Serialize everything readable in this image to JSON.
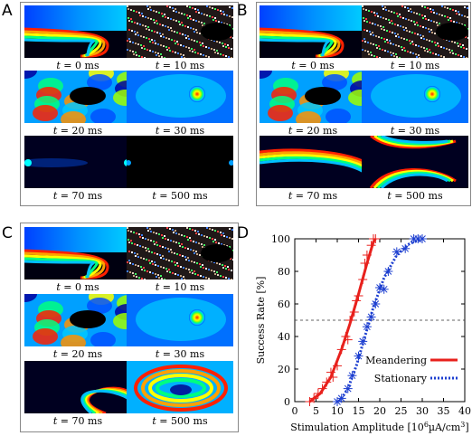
{
  "panels": [
    {
      "letter": "A",
      "captions": [
        "= 0 ms",
        "= 10 ms",
        "= 20 ms",
        "= 30 ms",
        "= 70 ms",
        "= 500 ms"
      ]
    },
    {
      "letter": "B",
      "captions": [
        "= 0 ms",
        "= 10 ms",
        "= 20 ms",
        "= 30 ms",
        "= 70 ms",
        "= 500 ms"
      ]
    },
    {
      "letter": "C",
      "captions": [
        "= 0 ms",
        "= 10 ms",
        "= 20 ms",
        "= 30 ms",
        "= 70 ms",
        "= 500 ms"
      ]
    }
  ],
  "time_var": "t",
  "panel_d_letter": "D",
  "chart_data": {
    "type": "scatter",
    "xlabel": "Stimulation Amplitude [10",
    "xlabel_sup": "6",
    "xlabel_tail": "µA/cm",
    "xlabel_sup2": "3",
    "xlabel_end": "]",
    "ylabel": "Success Rate [%]",
    "xlim": [
      0,
      40
    ],
    "ylim": [
      0,
      100
    ],
    "xticks": [
      0,
      5,
      10,
      15,
      20,
      25,
      30,
      35,
      40
    ],
    "yticks": [
      0,
      20,
      40,
      60,
      80,
      100
    ],
    "reference_line": 50,
    "legend_position": "lower-right",
    "series": [
      {
        "name": "Meandering",
        "color": "#e8201c",
        "marker": "+",
        "points": [
          [
            3.5,
            0
          ],
          [
            4.5,
            2
          ],
          [
            5.5,
            5
          ],
          [
            6.5,
            8
          ],
          [
            7.5,
            12
          ],
          [
            8.5,
            18
          ],
          [
            9,
            15
          ],
          [
            10,
            22
          ],
          [
            11,
            32
          ],
          [
            12,
            40
          ],
          [
            12.5,
            38
          ],
          [
            13,
            50
          ],
          [
            14,
            55
          ],
          [
            14.5,
            62
          ],
          [
            15,
            65
          ],
          [
            16,
            75
          ],
          [
            16.5,
            85
          ],
          [
            17,
            90
          ],
          [
            18,
            96
          ],
          [
            18.5,
            100
          ],
          [
            19,
            100
          ]
        ],
        "fit": [
          [
            3.5,
            0
          ],
          [
            6,
            5
          ],
          [
            8.5,
            15
          ],
          [
            11,
            32
          ],
          [
            13,
            48
          ],
          [
            15,
            66
          ],
          [
            17,
            85
          ],
          [
            18.5,
            98
          ],
          [
            19,
            100
          ]
        ]
      },
      {
        "name": "Stationary",
        "color": "#1d3fd0",
        "marker": "*",
        "points": [
          [
            10,
            0
          ],
          [
            11,
            2
          ],
          [
            12.5,
            8
          ],
          [
            13.5,
            16
          ],
          [
            15,
            28
          ],
          [
            16,
            37
          ],
          [
            17,
            46
          ],
          [
            18,
            52
          ],
          [
            19,
            60
          ],
          [
            20,
            70
          ],
          [
            21,
            69
          ],
          [
            22,
            80
          ],
          [
            24,
            92
          ],
          [
            26,
            94
          ],
          [
            28,
            100
          ],
          [
            29,
            100
          ],
          [
            30,
            100
          ]
        ],
        "fit": [
          [
            10.5,
            0
          ],
          [
            12.5,
            8
          ],
          [
            14.5,
            22
          ],
          [
            16.5,
            40
          ],
          [
            18.5,
            58
          ],
          [
            21,
            76
          ],
          [
            24,
            90
          ],
          [
            27,
            97
          ],
          [
            30,
            100
          ]
        ]
      }
    ]
  }
}
